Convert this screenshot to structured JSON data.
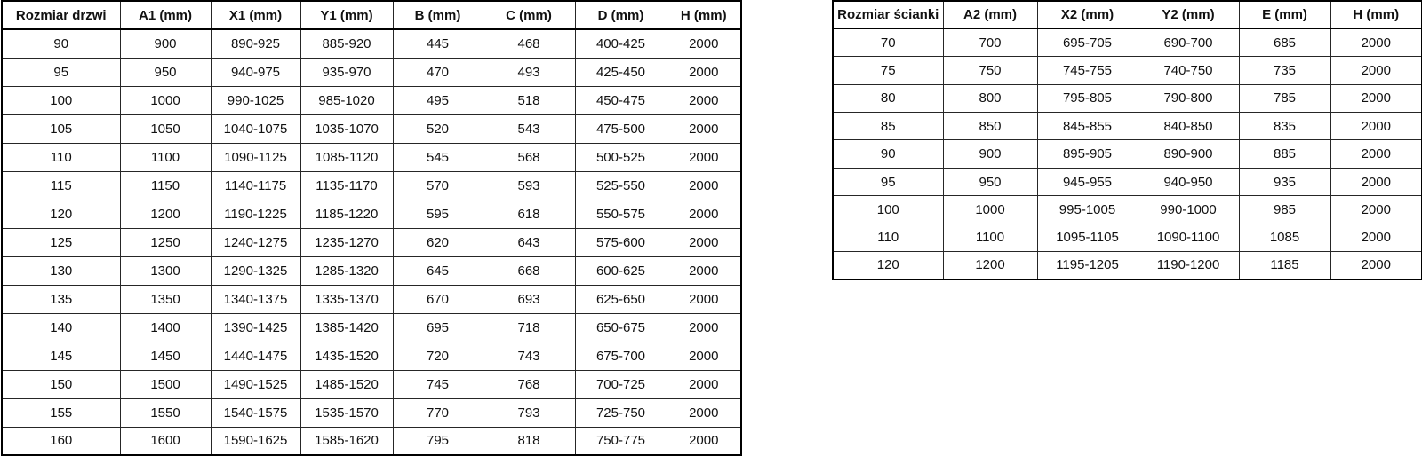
{
  "door_table": {
    "name": "door-size-table",
    "headers": [
      "Rozmiar drzwi",
      "A1 (mm)",
      "X1 (mm)",
      "Y1 (mm)",
      "B (mm)",
      "C (mm)",
      "D (mm)",
      "H (mm)"
    ],
    "rows": [
      [
        "90",
        "900",
        "890-925",
        "885-920",
        "445",
        "468",
        "400-425",
        "2000"
      ],
      [
        "95",
        "950",
        "940-975",
        "935-970",
        "470",
        "493",
        "425-450",
        "2000"
      ],
      [
        "100",
        "1000",
        "990-1025",
        "985-1020",
        "495",
        "518",
        "450-475",
        "2000"
      ],
      [
        "105",
        "1050",
        "1040-1075",
        "1035-1070",
        "520",
        "543",
        "475-500",
        "2000"
      ],
      [
        "110",
        "1100",
        "1090-1125",
        "1085-1120",
        "545",
        "568",
        "500-525",
        "2000"
      ],
      [
        "115",
        "1150",
        "1140-1175",
        "1135-1170",
        "570",
        "593",
        "525-550",
        "2000"
      ],
      [
        "120",
        "1200",
        "1190-1225",
        "1185-1220",
        "595",
        "618",
        "550-575",
        "2000"
      ],
      [
        "125",
        "1250",
        "1240-1275",
        "1235-1270",
        "620",
        "643",
        "575-600",
        "2000"
      ],
      [
        "130",
        "1300",
        "1290-1325",
        "1285-1320",
        "645",
        "668",
        "600-625",
        "2000"
      ],
      [
        "135",
        "1350",
        "1340-1375",
        "1335-1370",
        "670",
        "693",
        "625-650",
        "2000"
      ],
      [
        "140",
        "1400",
        "1390-1425",
        "1385-1420",
        "695",
        "718",
        "650-675",
        "2000"
      ],
      [
        "145",
        "1450",
        "1440-1475",
        "1435-1520",
        "720",
        "743",
        "675-700",
        "2000"
      ],
      [
        "150",
        "1500",
        "1490-1525",
        "1485-1520",
        "745",
        "768",
        "700-725",
        "2000"
      ],
      [
        "155",
        "1550",
        "1540-1575",
        "1535-1570",
        "770",
        "793",
        "725-750",
        "2000"
      ],
      [
        "160",
        "1600",
        "1590-1625",
        "1585-1620",
        "795",
        "818",
        "750-775",
        "2000"
      ]
    ]
  },
  "wall_table": {
    "name": "wall-size-table",
    "headers": [
      "Rozmiar ścianki",
      "A2 (mm)",
      "X2 (mm)",
      "Y2 (mm)",
      "E (mm)",
      "H (mm)"
    ],
    "rows": [
      [
        "70",
        "700",
        "695-705",
        "690-700",
        "685",
        "2000"
      ],
      [
        "75",
        "750",
        "745-755",
        "740-750",
        "735",
        "2000"
      ],
      [
        "80",
        "800",
        "795-805",
        "790-800",
        "785",
        "2000"
      ],
      [
        "85",
        "850",
        "845-855",
        "840-850",
        "835",
        "2000"
      ],
      [
        "90",
        "900",
        "895-905",
        "890-900",
        "885",
        "2000"
      ],
      [
        "95",
        "950",
        "945-955",
        "940-950",
        "935",
        "2000"
      ],
      [
        "100",
        "1000",
        "995-1005",
        "990-1000",
        "985",
        "2000"
      ],
      [
        "110",
        "1100",
        "1095-1105",
        "1090-1100",
        "1085",
        "2000"
      ],
      [
        "120",
        "1200",
        "1195-1205",
        "1190-1200",
        "1185",
        "2000"
      ]
    ]
  },
  "colors": {
    "border": "#000000",
    "text": "#111111",
    "background": "#ffffff"
  }
}
